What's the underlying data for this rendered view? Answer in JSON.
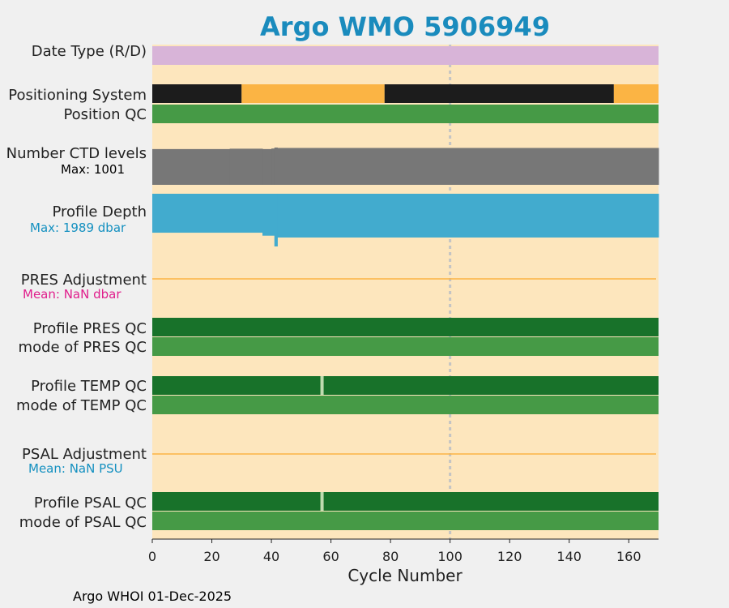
{
  "chart_data": {
    "type": "bar",
    "title": "Argo WMO 5906949",
    "xlabel": "Cycle Number",
    "xlim": [
      0,
      170
    ],
    "x_ticks": [
      "0",
      "20",
      "40",
      "60",
      "80",
      "100",
      "120",
      "140",
      "160"
    ],
    "rows": [
      {
        "label": "Date Type (R/D)",
        "color": "#d8b4d8"
      },
      {
        "label": "Positioning System",
        "segments": [
          {
            "start": 0,
            "end": 30,
            "color": "#1c1c1c"
          },
          {
            "start": 30,
            "end": 78,
            "color": "#fbb444"
          },
          {
            "start": 78,
            "end": 155,
            "color": "#1c1c1c"
          },
          {
            "start": 155,
            "end": 170,
            "color": "#fbb444"
          }
        ]
      },
      {
        "label": "Position QC",
        "color": "#469a46"
      },
      {
        "label": "Number CTD levels",
        "sublabel": "Max: 1001",
        "sublabel_color": "#000000",
        "color": "#777777"
      },
      {
        "label": "Profile Depth",
        "sublabel": "Max: 1989 dbar",
        "sublabel_color": "#1490c0",
        "color": "#42abce"
      },
      {
        "label": "PRES Adjustment",
        "sublabel": "Mean:  NaN dbar",
        "sublabel_color": "#e01e8c",
        "color": "#fbb444"
      },
      {
        "label": "Profile PRES QC",
        "color": "#18722a"
      },
      {
        "label": "mode of PRES QC",
        "color": "#469a46"
      },
      {
        "label": "Profile TEMP QC",
        "color": "#18722a",
        "gap_cycle": 57
      },
      {
        "label": "mode of TEMP QC",
        "color": "#469a46"
      },
      {
        "label": "PSAL Adjustment",
        "sublabel": "Mean:  NaN PSU",
        "sublabel_color": "#1490c0",
        "color": "#fbb444"
      },
      {
        "label": "Profile PSAL QC",
        "color": "#18722a",
        "gap_cycle": 57
      },
      {
        "label": "mode of PSAL QC",
        "color": "#469a46"
      }
    ],
    "ctd_levels": [
      {
        "from": 0,
        "to": 26,
        "value": 960
      },
      {
        "from": 26,
        "to": 37,
        "value": 970
      },
      {
        "from": 37,
        "to": 40,
        "value": 960
      },
      {
        "from": 40,
        "to": 41,
        "value": 975
      },
      {
        "from": 41,
        "to": 42,
        "value": 1001
      },
      {
        "from": 42,
        "to": 170,
        "value": 990
      }
    ],
    "profile_depth": [
      {
        "from": 0,
        "to": 37,
        "value": 1050
      },
      {
        "from": 37,
        "to": 41,
        "value": 1130
      },
      {
        "from": 41,
        "to": 42,
        "value": 1989
      },
      {
        "from": 42,
        "to": 170,
        "value": 1180
      }
    ],
    "background_color": "#fde6bd",
    "reference_cycle": 100
  },
  "footer": "Argo WHOI 01-Dec-2025"
}
